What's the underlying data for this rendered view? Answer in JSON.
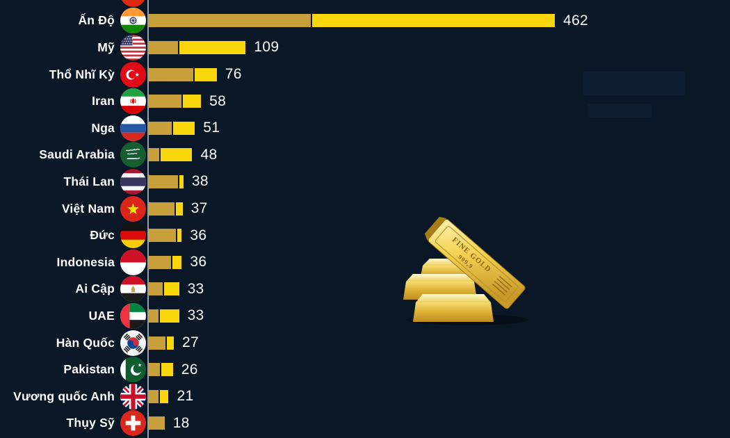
{
  "chart_data": {
    "type": "bar",
    "orientation": "horizontal",
    "title": "",
    "xlabel": "",
    "ylabel": "",
    "xlim": [
      0,
      660
    ],
    "grid": false,
    "legend": false,
    "categories": [
      "Ấn Độ",
      "Mỹ",
      "Thổ Nhĩ Kỳ",
      "Iran",
      "Nga",
      "Saudi Arabia",
      "Thái Lan",
      "Việt Nam",
      "Đức",
      "Indonesia",
      "Ai Cập",
      "UAE",
      "Hàn Quốc",
      "Pakistan",
      "Vương quốc Anh",
      "Thụy Sỹ"
    ],
    "values": [
      462,
      109,
      76,
      58,
      51,
      48,
      38,
      37,
      36,
      36,
      33,
      33,
      27,
      26,
      21,
      18
    ],
    "segment_boundary_values": [
      185,
      33,
      51,
      37,
      26,
      12,
      33,
      29,
      31,
      25,
      16,
      11,
      19,
      13,
      11,
      18
    ],
    "flags": [
      "india",
      "usa",
      "turkey",
      "iran",
      "russia",
      "saudi-arabia",
      "thailand",
      "vietnam",
      "germany",
      "indonesia",
      "egypt",
      "uae",
      "south-korea",
      "pakistan",
      "uk",
      "switzerland"
    ],
    "partial_top_row_flag": "china",
    "value_labels_shown": true
  },
  "style": {
    "background": "#0a1726",
    "bar_color_primary": "#c7a03c",
    "bar_color_highlight": "#f8d60b",
    "axis_line_color": "#96a0ae",
    "text_color": "#ffffff"
  },
  "illustration": {
    "name": "gold-bars",
    "stamp_line1": "FINE",
    "stamp_line2": "GOLD",
    "stamp_line3": "999,9"
  }
}
